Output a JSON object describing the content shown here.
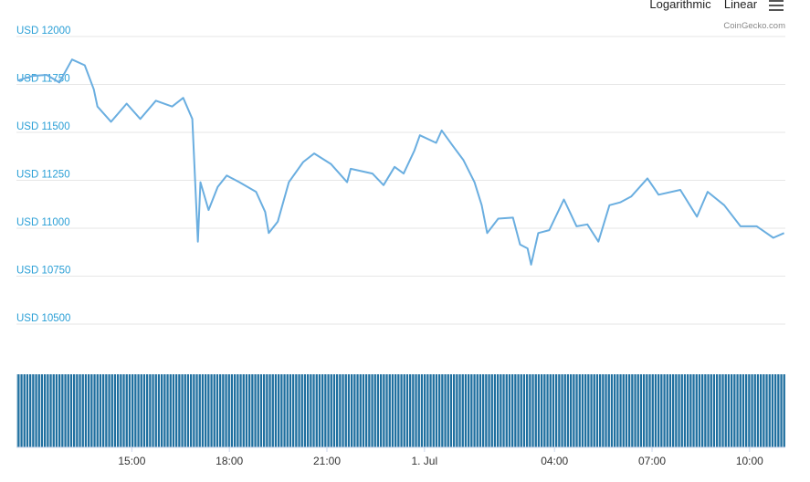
{
  "chart_data": {
    "type": "line",
    "scale_options": [
      "Logarithmic",
      "Linear"
    ],
    "credit": "CoinGecko.com",
    "color": "#6aaee0",
    "grid": true,
    "x": [
      -12.52,
      -12.04,
      -11.62,
      -11.23,
      -10.84,
      -10.45,
      -10.17,
      -10.06,
      -9.64,
      -9.16,
      -8.74,
      -8.26,
      -7.76,
      -7.42,
      -7.14,
      -6.97,
      -6.89,
      -6.64,
      -6.36,
      -6.08,
      -5.69,
      -5.18,
      -4.9,
      -4.79,
      -4.51,
      -4.17,
      -3.73,
      -3.39,
      -2.88,
      -2.38,
      -2.27,
      -1.6,
      -1.26,
      -0.92,
      -0.64,
      -0.31,
      -0.14,
      0.36,
      0.53,
      0.87,
      1.2,
      1.54,
      1.76,
      1.93,
      2.27,
      2.72,
      2.94,
      3.17,
      3.28,
      3.5,
      3.84,
      4.29,
      4.68,
      5.01,
      5.35,
      5.69,
      6.02,
      6.36,
      6.86,
      7.2,
      7.87,
      8.38,
      8.71,
      9.22,
      9.72,
      10.22,
      10.73,
      11.06
    ],
    "values": [
      11770,
      11795,
      11800,
      11760,
      11880,
      11850,
      11725,
      11635,
      11555,
      11650,
      11570,
      11665,
      11635,
      11680,
      11570,
      10930,
      11240,
      11095,
      11215,
      11275,
      11240,
      11190,
      11085,
      10975,
      11035,
      11240,
      11345,
      11390,
      11335,
      11240,
      11310,
      11285,
      11225,
      11320,
      11285,
      11405,
      11485,
      11445,
      11510,
      11430,
      11355,
      11240,
      11120,
      10975,
      11050,
      11055,
      10915,
      10895,
      10810,
      10975,
      10990,
      11150,
      11010,
      11020,
      10930,
      11120,
      11135,
      11165,
      11260,
      11175,
      11200,
      11060,
      11190,
      11120,
      11010,
      11010,
      10950,
      10975
    ],
    "xlim": [
      -12.55,
      11.1
    ],
    "xticks": [
      {
        "value": -9,
        "label": "15:00"
      },
      {
        "value": -6,
        "label": "18:00"
      },
      {
        "value": -3,
        "label": "21:00"
      },
      {
        "value": 0,
        "label": "1. Jul"
      },
      {
        "value": 4,
        "label": "04:00"
      },
      {
        "value": 7,
        "label": "07:00"
      },
      {
        "value": 10,
        "label": "10:00"
      }
    ],
    "ylim": [
      10400,
      12100
    ],
    "yticks": [
      {
        "value": 10500,
        "label": "USD 10500"
      },
      {
        "value": 10750,
        "label": "USD 10750"
      },
      {
        "value": 11000,
        "label": "USD 11000"
      },
      {
        "value": 11250,
        "label": "USD 11250"
      },
      {
        "value": 11500,
        "label": "USD 11500"
      },
      {
        "value": 11750,
        "label": "USD 11750"
      },
      {
        "value": 12000,
        "label": "USD 12000"
      }
    ]
  }
}
